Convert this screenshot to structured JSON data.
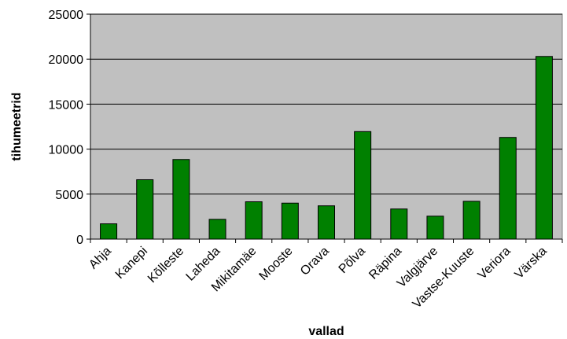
{
  "chart_data": {
    "type": "bar",
    "title": "",
    "xlabel": "vallad",
    "ylabel": "tihumeetrid",
    "categories": [
      "Ahja",
      "Kanepi",
      "Kõlleste",
      "Laheda",
      "Mikitamäe",
      "Mooste",
      "Orava",
      "Põlva",
      "Räpina",
      "Valgjärve",
      "Vastse-Kuuste",
      "Veriora",
      "Värska"
    ],
    "values": [
      1700,
      6600,
      8850,
      2200,
      4150,
      4000,
      3700,
      11950,
      3350,
      2550,
      4200,
      11300,
      20300
    ],
    "ylim": [
      0,
      25000
    ],
    "yticks": [
      0,
      5000,
      10000,
      15000,
      20000,
      25000
    ],
    "grid": true,
    "colors": {
      "bar": "#008000",
      "bar_border": "#000000",
      "plot_background": "#c0c0c0",
      "gridline": "#000000"
    }
  }
}
